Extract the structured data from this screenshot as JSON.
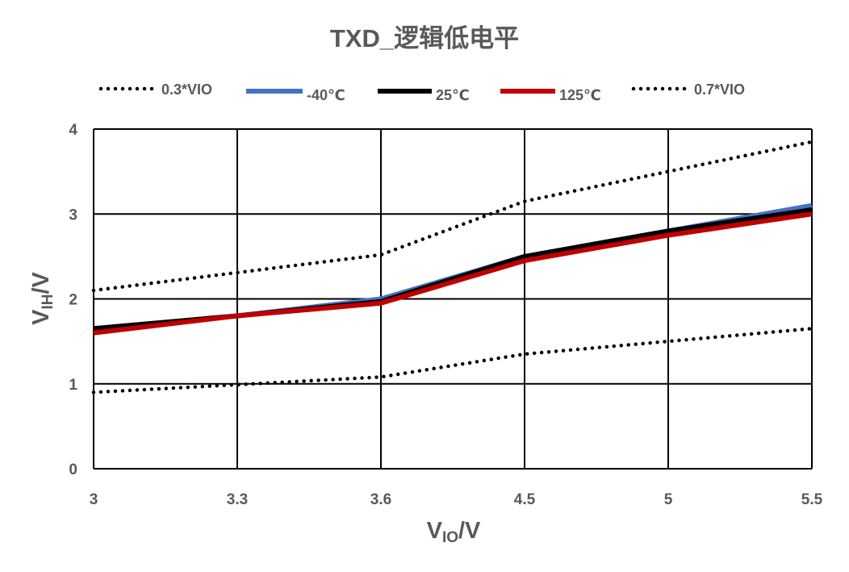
{
  "chart_data": {
    "type": "line",
    "title": "TXD_逻辑低电平",
    "categories": [
      "3",
      "3.3",
      "3.6",
      "4.5",
      "5",
      "5.5"
    ],
    "xlabel": {
      "base": "V",
      "sub": "IO",
      "suffix": "/V"
    },
    "ylabel": {
      "base": "V",
      "sub": "IH",
      "suffix": "/V"
    },
    "ylim": [
      0,
      4
    ],
    "yticks": [
      0,
      1,
      2,
      3,
      4
    ],
    "grid": true,
    "legend": "top",
    "series": [
      {
        "name": "0.3*VIO",
        "color": "#000000",
        "dotted": true,
        "values": [
          0.9,
          0.99,
          1.08,
          1.35,
          1.5,
          1.65
        ]
      },
      {
        "name": "-40℃",
        "color": "#4472C4",
        "dotted": false,
        "values": [
          1.65,
          1.8,
          2.0,
          2.5,
          2.8,
          3.1
        ]
      },
      {
        "name": "25℃",
        "color": "#000000",
        "dotted": false,
        "values": [
          1.65,
          1.8,
          1.97,
          2.5,
          2.8,
          3.05
        ]
      },
      {
        "name": "125℃",
        "color": "#C00000",
        "dotted": false,
        "values": [
          1.6,
          1.8,
          1.95,
          2.45,
          2.75,
          3.0
        ]
      },
      {
        "name": "0.7*VIO",
        "color": "#000000",
        "dotted": true,
        "values": [
          2.1,
          2.31,
          2.52,
          3.15,
          3.5,
          3.85
        ]
      }
    ]
  }
}
